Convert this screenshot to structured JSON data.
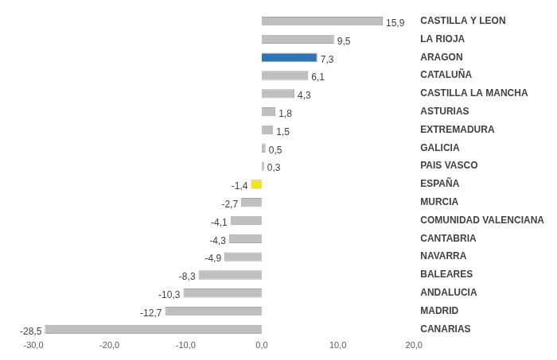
{
  "chart_data": {
    "type": "bar",
    "orientation": "horizontal",
    "categories": [
      "CASTILLA Y LEON",
      "LA RIOJA",
      "ARAGON",
      "CATALUÑA",
      "CASTILLA LA MANCHA",
      "ASTURIAS",
      "EXTREMADURA",
      "GALICIA",
      "PAIS VASCO",
      "ESPAÑA",
      "MURCIA",
      "COMUNIDAD VALENCIANA",
      "CANTABRIA",
      "NAVARRA",
      "BALEARES",
      "ANDALUCIA",
      "MADRID",
      "CANARIAS"
    ],
    "values": [
      15.9,
      9.5,
      7.3,
      6.1,
      4.3,
      1.8,
      1.5,
      0.5,
      0.3,
      -1.4,
      -2.7,
      -4.1,
      -4.3,
      -4.9,
      -8.3,
      -10.3,
      -12.7,
      -28.5
    ],
    "value_labels": [
      "15,9",
      "9,5",
      "7,3",
      "6,1",
      "4,3",
      "1,8",
      "1,5",
      "0,5",
      "0,3",
      "-1,4",
      "-2,7",
      "-4,1",
      "-4,3",
      "-4,9",
      "-8,3",
      "-10,3",
      "-12,7",
      "-28,5"
    ],
    "colors": [
      "#bfbfbf",
      "#bfbfbf",
      "#2e75b6",
      "#bfbfbf",
      "#bfbfbf",
      "#bfbfbf",
      "#bfbfbf",
      "#bfbfbf",
      "#bfbfbf",
      "#f5e800",
      "#bfbfbf",
      "#bfbfbf",
      "#bfbfbf",
      "#bfbfbf",
      "#bfbfbf",
      "#bfbfbf",
      "#bfbfbf",
      "#bfbfbf"
    ],
    "xlim": [
      -30,
      20
    ],
    "xticks": [
      {
        "value": -30,
        "label": "-30,0"
      },
      {
        "value": -20,
        "label": "-20,0"
      },
      {
        "value": -10,
        "label": "-10,0"
      },
      {
        "value": 0,
        "label": "0,0"
      },
      {
        "value": 10,
        "label": "10,0"
      },
      {
        "value": 20,
        "label": "20,0"
      }
    ],
    "grid": false,
    "data_labels": true
  }
}
